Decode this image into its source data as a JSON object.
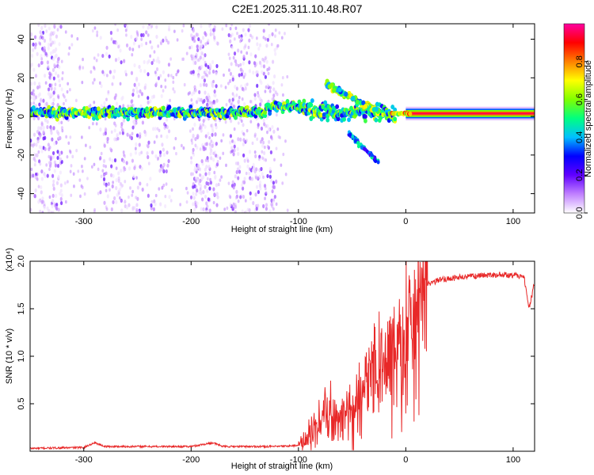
{
  "figure_title": "C2E1.2025.311.10.48.R07",
  "chart_data": [
    {
      "type": "heatmap",
      "title": "C2E1.2025.311.10.48.R07",
      "xlabel": "Height of straight line (km)",
      "ylabel": "Frequency (Hz)",
      "xlim": [
        -350,
        120
      ],
      "ylim": [
        -50,
        48
      ],
      "xticks": [
        -300,
        -200,
        -100,
        0,
        100
      ],
      "xtick_labels": [
        "-300",
        "-200",
        "-100",
        "0",
        "100"
      ],
      "yticks": [
        -40,
        -20,
        0,
        20,
        40
      ],
      "ytick_labels": [
        "-40",
        "-20",
        "0",
        "20",
        "40"
      ],
      "colorbar": {
        "label": "Normalized spectral amplitude",
        "range": [
          0,
          1
        ],
        "ticks": [
          0.0,
          0.2,
          0.4,
          0.6,
          0.8
        ],
        "tick_labels": [
          "0.0",
          "0.2",
          "0.4",
          "0.6",
          "0.8"
        ],
        "colors": [
          "#ffffff",
          "#c080ff",
          "#6000ff",
          "#0000ff",
          "#00c0ff",
          "#00ff80",
          "#80ff00",
          "#ffff00",
          "#ff8000",
          "#ff0000",
          "#ff00a0"
        ]
      },
      "features": {
        "background_noise_bands": [
          [
            -350,
            -320
          ],
          [
            -285,
            -220
          ],
          [
            -200,
            -175
          ],
          [
            -165,
            -120
          ]
        ],
        "main_band": {
          "x_range": [
            -350,
            120
          ],
          "y_center": 2
        },
        "upper_branch": {
          "x_start": -75,
          "x_end": -25,
          "y_start": 17,
          "y_end": 2
        },
        "lower_branch": {
          "x_start": -55,
          "x_end": -25,
          "y_start": -8,
          "y_end": -24
        },
        "steady_line": {
          "x_range": [
            0,
            120
          ],
          "y_center": 1.5
        }
      }
    },
    {
      "type": "line",
      "xlabel": "Height of straight line (km)",
      "ylabel": "SNR (10 * v/v)",
      "y_multiplier": "(x10⁴)",
      "xlim": [
        -350,
        120
      ],
      "ylim": [
        0,
        2.0
      ],
      "xticks": [
        -300,
        -200,
        -100,
        0,
        100
      ],
      "xtick_labels": [
        "-300",
        "-200",
        "-100",
        "0",
        "100"
      ],
      "yticks": [
        0.5,
        1.0,
        1.5,
        2.0
      ],
      "ytick_labels": [
        "0.5",
        "1.0",
        "1.5",
        "2.0"
      ],
      "series": [
        {
          "name": "SNR",
          "color": "#e82828",
          "x": [
            -350,
            -300,
            -290,
            -280,
            -250,
            -200,
            -180,
            -170,
            -150,
            -120,
            -100,
            -90,
            -80,
            -70,
            -60,
            -50,
            -40,
            -30,
            -20,
            -10,
            0,
            10,
            20,
            30,
            50,
            70,
            90,
            110,
            115,
            120
          ],
          "y": [
            0.03,
            0.04,
            0.09,
            0.05,
            0.05,
            0.05,
            0.09,
            0.05,
            0.05,
            0.05,
            0.06,
            0.18,
            0.35,
            0.45,
            0.35,
            0.5,
            0.75,
            0.9,
            1.0,
            1.2,
            1.35,
            1.6,
            1.75,
            1.8,
            1.83,
            1.85,
            1.86,
            1.84,
            1.5,
            1.78
          ]
        }
      ]
    }
  ]
}
